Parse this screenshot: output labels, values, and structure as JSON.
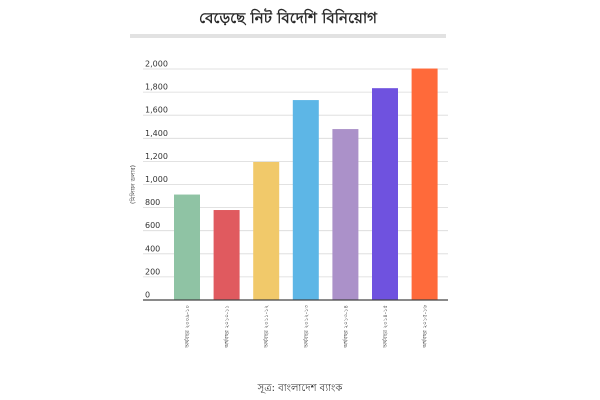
{
  "chart_data": {
    "type": "bar",
    "title": "বেড়েছে নিট বিদেশি বিনিয়োগ",
    "ylabel": "(মিলিয়ন ডলার)",
    "xlabel": "",
    "source": "সূত্র: বাংলাদেশ ব্যাংক",
    "ylim": [
      0,
      2000
    ],
    "yticks": [
      0,
      200,
      400,
      600,
      800,
      1000,
      1200,
      1400,
      1600,
      1800,
      2000
    ],
    "ytick_labels": [
      "0",
      "200",
      "400",
      "600",
      "800",
      "1,000",
      "1,200",
      "1,400",
      "1,600",
      "1,800",
      "2,000"
    ],
    "grid": true,
    "legend": "none",
    "categories": [
      "অর্থবছর ২০০৯-১০",
      "অর্থবছর ২০১০-১১",
      "অর্থবছর ২০১১-১২",
      "অর্থবছর ২০১২-১৩",
      "অর্থবছর ২০১৩-১৪",
      "অর্থবছর ২০১৪-১৫",
      "অর্থবছর ২০১৫-১৬"
    ],
    "values": [
      913,
      779,
      1195,
      1731,
      1480,
      1834,
      2004
    ],
    "colors": [
      "#8fc3a4",
      "#e05a5f",
      "#f1c96a",
      "#5db6e6",
      "#ab91c9",
      "#6f52df",
      "#ff6a3a"
    ]
  }
}
